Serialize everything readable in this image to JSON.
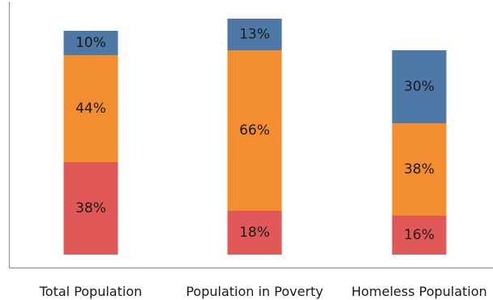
{
  "chart_data": {
    "type": "bar",
    "stacked": true,
    "categories": [
      "Total Population",
      "Population in Poverty",
      "Homeless Population"
    ],
    "series": [
      {
        "values": [
          38,
          18,
          16
        ],
        "labels": [
          "38%",
          "18%",
          "16%"
        ],
        "color": "#e05858"
      },
      {
        "values": [
          44,
          66,
          38
        ],
        "labels": [
          "44%",
          "66%",
          "38%"
        ],
        "color": "#f28e2f"
      },
      {
        "values": [
          10,
          13,
          30
        ],
        "labels": [
          "10%",
          "13%",
          "30%"
        ],
        "color": "#4e79a7"
      }
    ],
    "title": "",
    "xlabel": "",
    "ylabel": "",
    "ylim": [
      0,
      100
    ],
    "grid": false,
    "legend": "none"
  }
}
